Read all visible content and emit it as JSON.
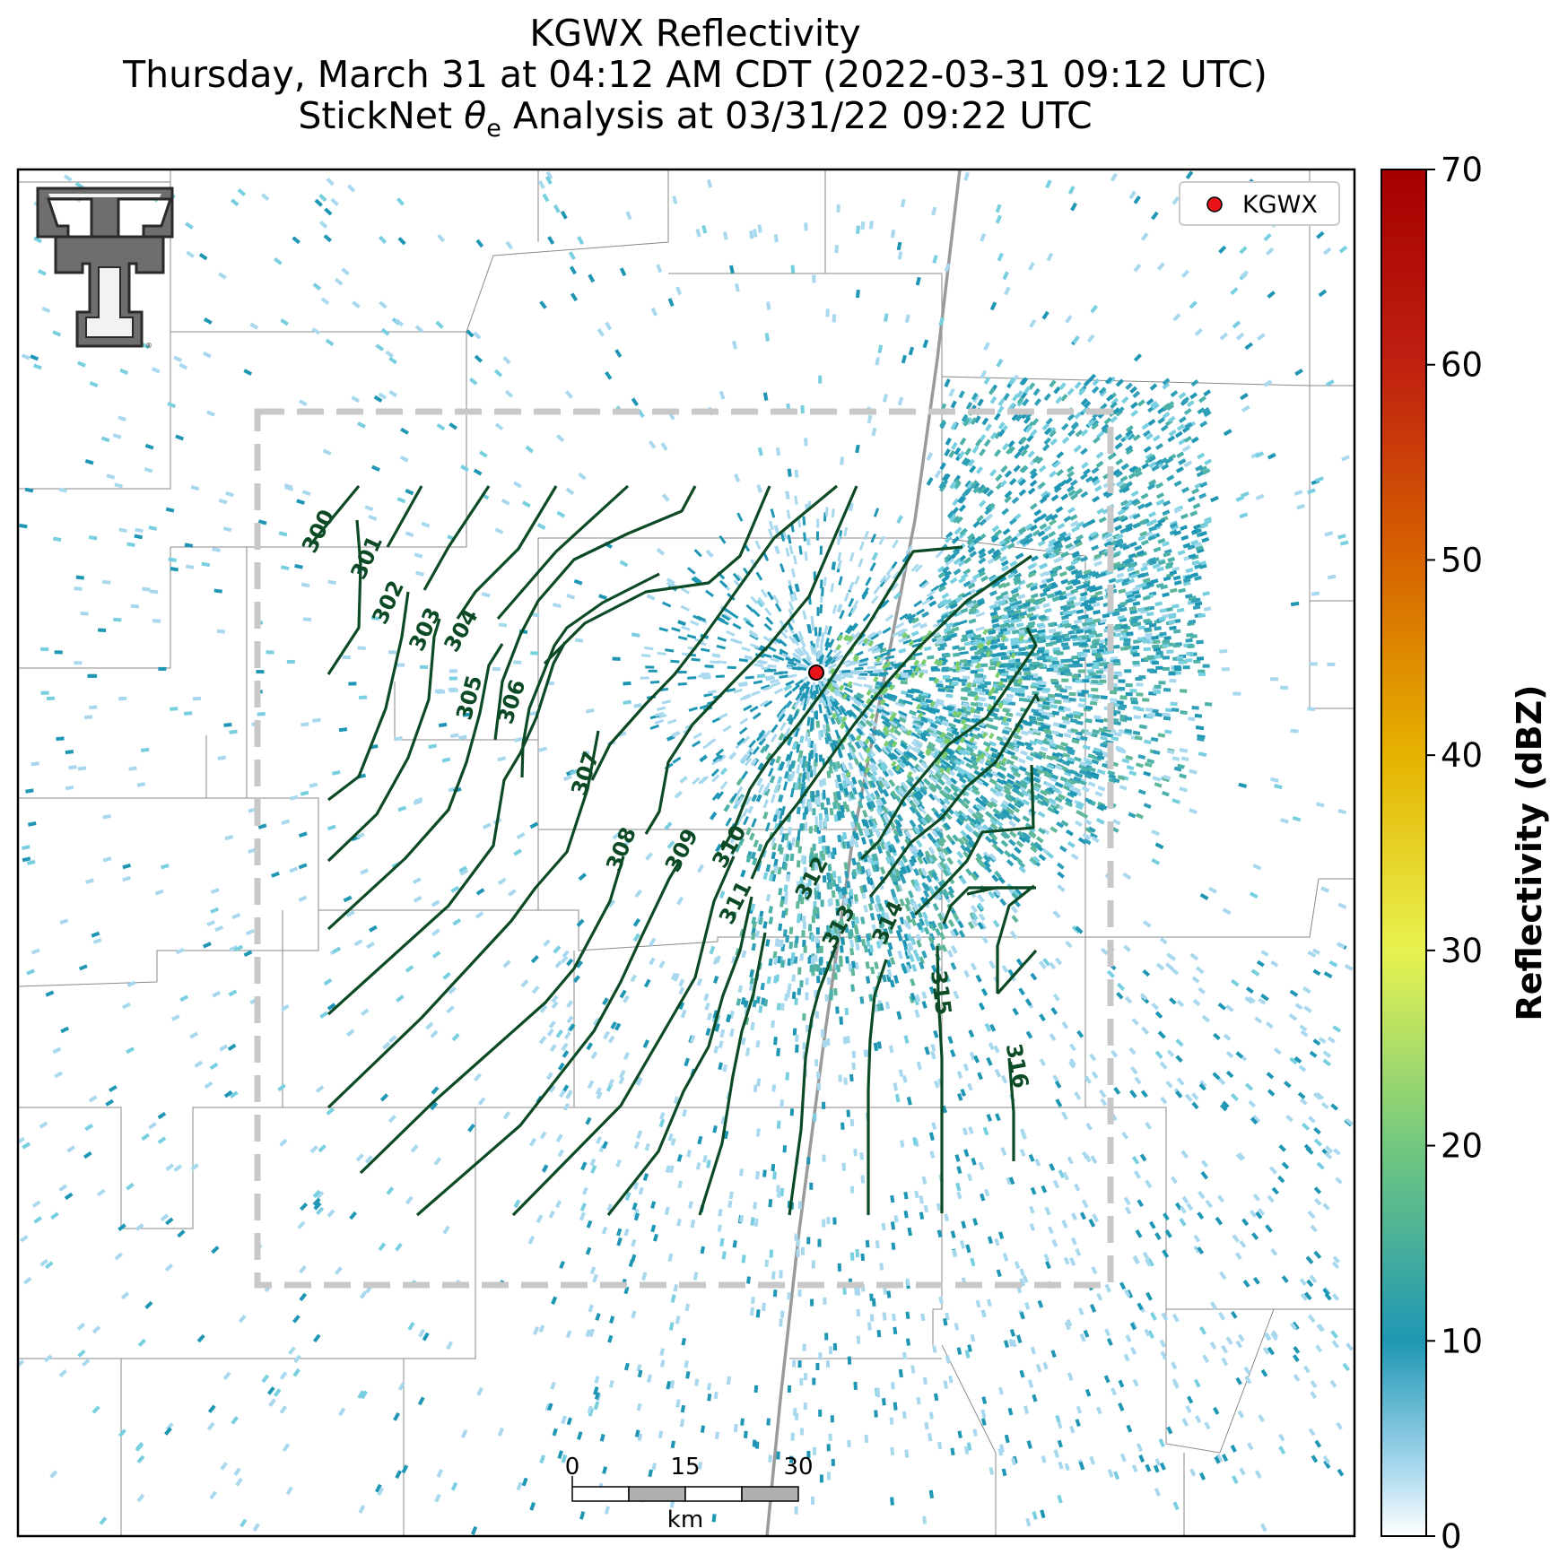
{
  "title": {
    "line1": "KGWX Reflectivity",
    "line2": "Thursday, March 31 at 04:12 AM CDT (2022-03-31 09:12 UTC)",
    "line3_prefix": "StickNet ",
    "line3_symbol": "θ",
    "line3_sub": "e",
    "line3_suffix": " Analysis at 03/31/22 09:22 UTC"
  },
  "legend": {
    "marker_label": "KGWX",
    "marker_color": "#e8141a"
  },
  "radar_site": {
    "name": "KGWX"
  },
  "colorbar": {
    "label": "Reflectivity (dBZ)",
    "range": [
      0,
      70
    ],
    "ticks": [
      "0",
      "10",
      "20",
      "30",
      "40",
      "50",
      "60",
      "70"
    ],
    "colors": [
      "#ffffff",
      "#1f97b4",
      "#72c87f",
      "#e8f250",
      "#e6b200",
      "#d66300",
      "#c02010",
      "#a40000"
    ]
  },
  "scale_bar": {
    "unit": "km",
    "ticks": [
      "0",
      "15",
      "30"
    ]
  },
  "contours": {
    "variable": "theta-e",
    "levels": [
      "300",
      "301",
      "302",
      "303",
      "304",
      "305",
      "306",
      "307",
      "308",
      "309",
      "310",
      "311",
      "312",
      "313",
      "314",
      "315",
      "316"
    ],
    "color": "#0b4a24"
  },
  "analysis_domain": {
    "style": "dashed",
    "color": "#c8c8c8"
  },
  "logo": {
    "name": "Texas Tech Double T"
  }
}
